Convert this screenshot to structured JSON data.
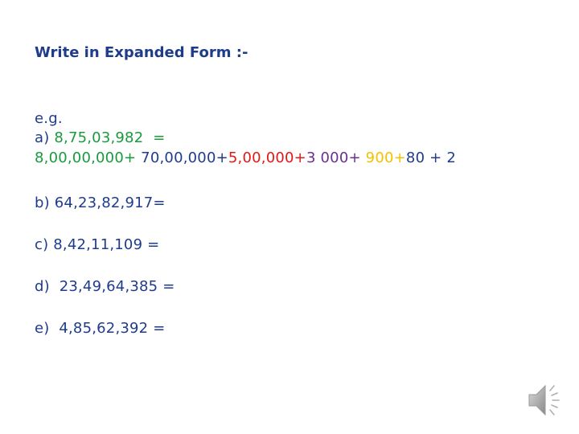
{
  "title": "Write in Expanded Form :-",
  "example": {
    "label": "e.g.",
    "prefix": "a) ",
    "number": "8,75,03,982",
    "equals": "  =",
    "expansion": {
      "p1": "8,00,00,000+",
      "p2": " 70,00,000+",
      "p3": "5,00,000+",
      "p4": "3 000+",
      "p5": " 900+",
      "p6": "80 + 2"
    }
  },
  "questions": [
    {
      "text": "b) 64,23,82,917="
    },
    {
      "text": "c) 8,42,11,109 ="
    },
    {
      "text": "d)  23,49,64,385 ="
    },
    {
      "text": "e)  4,85,62,392 ="
    }
  ],
  "icons": {
    "speaker": "speaker-icon"
  },
  "colors": {
    "text": "#1f3c8c",
    "green": "#1a9a3c",
    "red": "#e01818",
    "purple": "#6b2f8f",
    "yellow": "#f2c200"
  }
}
